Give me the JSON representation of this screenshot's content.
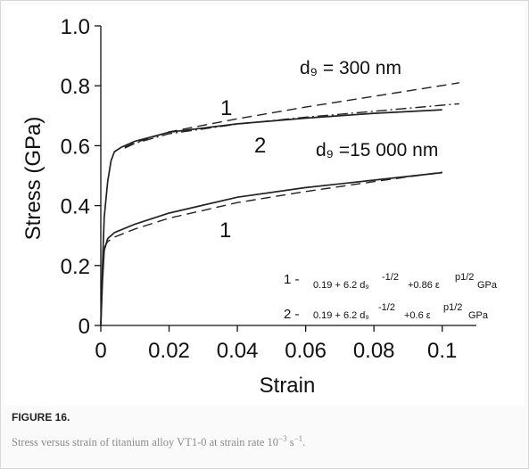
{
  "figure": {
    "label": "FIGURE 16.",
    "caption_main": "Stress versus strain of titanium alloy VT1-0 at strain rate 10",
    "caption_exp1": "−3",
    "caption_unit": " s",
    "caption_exp2": "−1",
    "caption_end": "."
  },
  "chart_data": {
    "type": "line",
    "title": "",
    "xlabel": "Strain",
    "ylabel": "Stress (GPa)",
    "xlim": [
      0,
      0.11
    ],
    "ylim": [
      0,
      1.0
    ],
    "x_ticks": [
      0,
      0.02,
      0.04,
      0.06,
      0.08,
      0.1
    ],
    "x_tick_labels": [
      "0",
      "0.02",
      "0.04",
      "0.06",
      "0.08",
      "0.1"
    ],
    "y_ticks": [
      0,
      0.2,
      0.4,
      0.6,
      0.8,
      1.0
    ],
    "y_tick_labels": [
      "0",
      "0.2",
      "0.4",
      "0.6",
      "0.8",
      "1.0"
    ],
    "grid": false,
    "series": [
      {
        "group": "300 nm",
        "style": "solid",
        "points": [
          [
            0,
            0.0
          ],
          [
            0.0005,
            0.2
          ],
          [
            0.001,
            0.36
          ],
          [
            0.002,
            0.48
          ],
          [
            0.003,
            0.55
          ],
          [
            0.004,
            0.58
          ],
          [
            0.006,
            0.595
          ],
          [
            0.01,
            0.615
          ],
          [
            0.02,
            0.645
          ],
          [
            0.04,
            0.673
          ],
          [
            0.06,
            0.692
          ],
          [
            0.08,
            0.708
          ],
          [
            0.1,
            0.72
          ]
        ]
      },
      {
        "group": "300 nm",
        "style": "dashed",
        "points": [
          [
            0.007,
            0.595
          ],
          [
            0.01,
            0.61
          ],
          [
            0.02,
            0.646
          ],
          [
            0.04,
            0.69
          ],
          [
            0.06,
            0.729
          ],
          [
            0.08,
            0.765
          ],
          [
            0.1,
            0.801
          ],
          [
            0.105,
            0.81
          ]
        ]
      },
      {
        "group": "300 nm",
        "style": "dashdot",
        "points": [
          [
            0.007,
            0.592
          ],
          [
            0.01,
            0.608
          ],
          [
            0.02,
            0.64
          ],
          [
            0.04,
            0.672
          ],
          [
            0.06,
            0.695
          ],
          [
            0.08,
            0.715
          ],
          [
            0.1,
            0.735
          ],
          [
            0.105,
            0.74
          ]
        ]
      },
      {
        "group": "15 000 nm",
        "style": "solid",
        "points": [
          [
            0,
            0.0
          ],
          [
            0.0005,
            0.15
          ],
          [
            0.001,
            0.25
          ],
          [
            0.002,
            0.29
          ],
          [
            0.004,
            0.31
          ],
          [
            0.01,
            0.338
          ],
          [
            0.02,
            0.375
          ],
          [
            0.04,
            0.428
          ],
          [
            0.06,
            0.46
          ],
          [
            0.08,
            0.485
          ],
          [
            0.1,
            0.51
          ]
        ]
      },
      {
        "group": "15 000 nm",
        "style": "dashed",
        "points": [
          [
            0.001,
            0.26
          ],
          [
            0.002,
            0.28
          ],
          [
            0.004,
            0.295
          ],
          [
            0.01,
            0.322
          ],
          [
            0.02,
            0.358
          ],
          [
            0.04,
            0.41
          ],
          [
            0.06,
            0.447
          ],
          [
            0.08,
            0.48
          ],
          [
            0.1,
            0.512
          ]
        ]
      }
    ],
    "annotations": {
      "dg_300": "d₉ = 300 nm",
      "dg_15000": "d₉ =15 000 nm",
      "label_1_top": "1",
      "label_2": "2",
      "label_1_bottom": "1",
      "eq1_prefix": "1 -",
      "eq1_body": "0.19 + 6.2 d₉",
      "eq1_exp1": "-1/2",
      "eq1_mid": "+0.86 ε",
      "eq1_exp2": "p1/2",
      "eq1_unit": "GPa",
      "eq2_prefix": "2 -",
      "eq2_body": "0.19 + 6.2 d₉",
      "eq2_exp1": "-1/2",
      "eq2_mid": "+0.6 ε",
      "eq2_exp2": "p1/2",
      "eq2_unit": "GPa"
    }
  }
}
